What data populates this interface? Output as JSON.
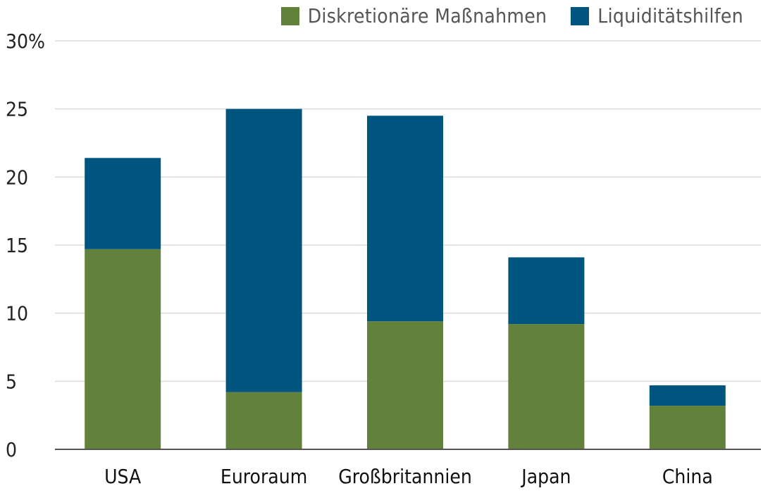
{
  "chart_data": {
    "type": "bar",
    "stacked": true,
    "categories": [
      "USA",
      "Euroraum",
      "Großbritannien",
      "Japan",
      "China"
    ],
    "series": [
      {
        "name": "Diskretionäre Maßnahmen",
        "values": [
          14.7,
          4.2,
          9.4,
          9.2,
          3.2
        ],
        "color": "#62823c"
      },
      {
        "name": "Liquiditätshilfen",
        "values": [
          6.7,
          20.8,
          15.1,
          4.9,
          1.5
        ],
        "color": "#00557f"
      }
    ],
    "y_ticks": [
      "0",
      "5",
      "10",
      "15",
      "20",
      "25",
      "30%"
    ],
    "ylim": [
      0,
      30
    ],
    "grid": true,
    "legend_position": "top-right",
    "title": "",
    "xlabel": "",
    "ylabel": ""
  }
}
